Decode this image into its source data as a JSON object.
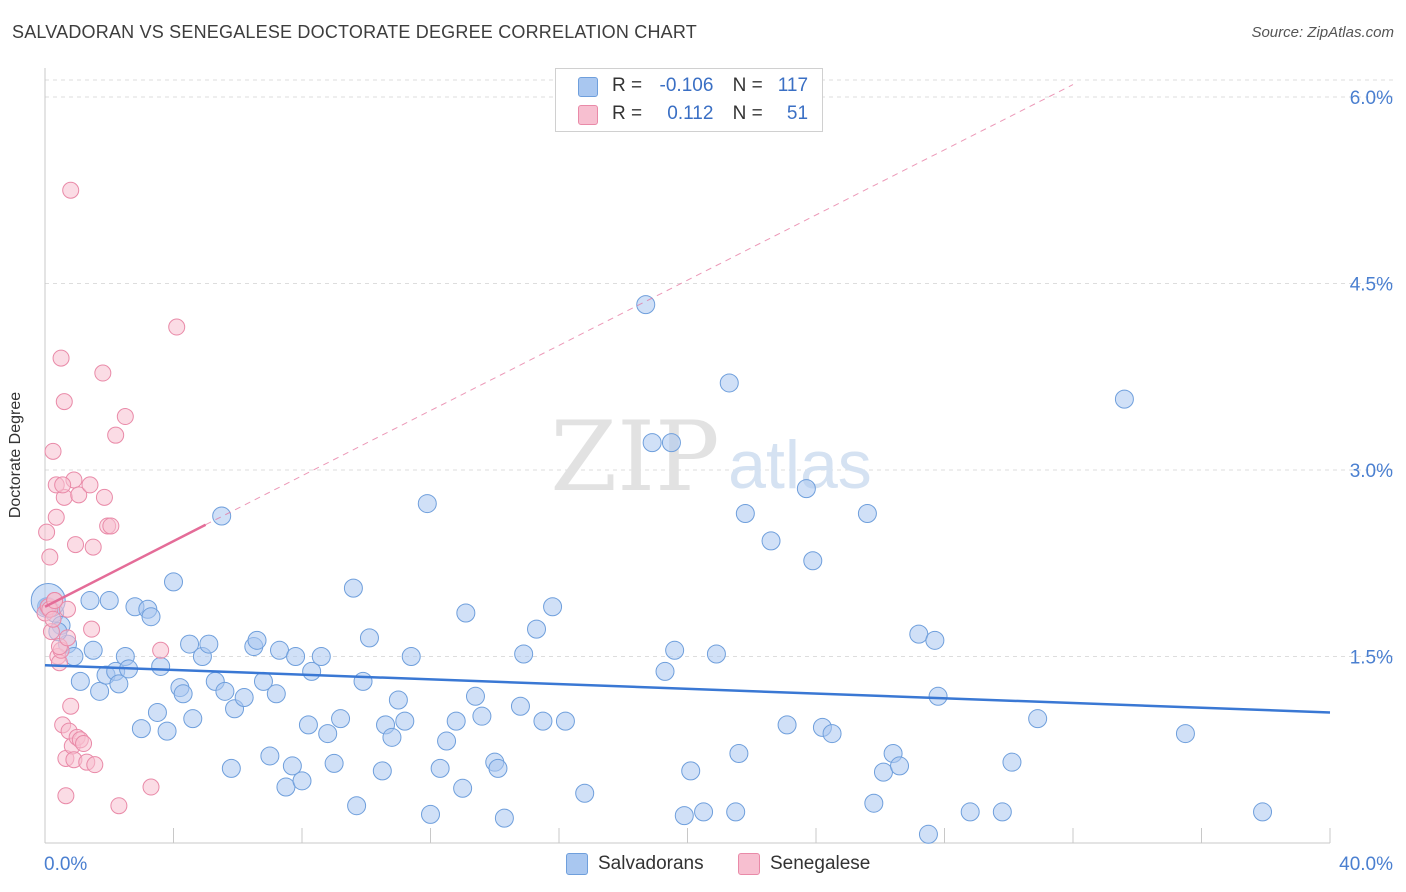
{
  "title": "SALVADORAN VS SENEGALESE DOCTORATE DEGREE CORRELATION CHART",
  "source": "Source: ZipAtlas.com",
  "watermark": {
    "zip": "ZIP",
    "atlas": "atlas"
  },
  "legend": {
    "rows": [
      {
        "r_label": "R =",
        "r_value": "-0.106",
        "n_label": "N =",
        "n_value": "117",
        "color": "#a9c7f0",
        "border": "#6f9fdc"
      },
      {
        "r_label": "R =",
        "r_value": "0.112",
        "n_label": "N =",
        "n_value": "51",
        "color": "#f7bfd0",
        "border": "#e98aa8"
      }
    ]
  },
  "bottom_legend": {
    "series1": "Salvadorans",
    "series2": "Senegalese"
  },
  "colors": {
    "blue": "#3a78d4",
    "pink": "#e46c98",
    "axis_text": "#4a7fd0",
    "grid": "#dddddd"
  },
  "chart_data": {
    "type": "scatter",
    "title": "SALVADORAN VS SENEGALESE DOCTORATE DEGREE CORRELATION CHART",
    "xlabel": "",
    "ylabel": "Doctorate Degree",
    "xlim": [
      0,
      40
    ],
    "ylim": [
      0,
      6.2
    ],
    "x_tick_labels": [
      "0.0%",
      "40.0%"
    ],
    "y_ticks": [
      1.5,
      3.0,
      4.5,
      6.0
    ],
    "y_tick_labels": [
      "1.5%",
      "3.0%",
      "4.5%",
      "6.0%"
    ],
    "series": [
      {
        "name": "Salvadorans",
        "color": "#a9c7f0",
        "stroke": "#6f9fdc",
        "points": [
          [
            0.1,
            1.9
          ],
          [
            0.3,
            1.85
          ],
          [
            0.5,
            1.75
          ],
          [
            0.7,
            1.6
          ],
          [
            0.9,
            1.5
          ],
          [
            1.1,
            1.3
          ],
          [
            1.4,
            1.95
          ],
          [
            1.5,
            1.55
          ],
          [
            1.7,
            1.22
          ],
          [
            1.9,
            1.35
          ],
          [
            2.0,
            1.95
          ],
          [
            2.2,
            1.38
          ],
          [
            2.3,
            1.28
          ],
          [
            2.5,
            1.5
          ],
          [
            2.6,
            1.4
          ],
          [
            2.8,
            1.9
          ],
          [
            3.0,
            0.92
          ],
          [
            3.2,
            1.88
          ],
          [
            3.3,
            1.82
          ],
          [
            3.5,
            1.05
          ],
          [
            3.6,
            1.42
          ],
          [
            3.8,
            0.9
          ],
          [
            4.0,
            2.1
          ],
          [
            4.2,
            1.25
          ],
          [
            4.3,
            1.2
          ],
          [
            4.5,
            1.6
          ],
          [
            4.6,
            1.0
          ],
          [
            4.9,
            1.5
          ],
          [
            5.1,
            1.6
          ],
          [
            5.3,
            1.3
          ],
          [
            5.5,
            2.63
          ],
          [
            5.6,
            1.22
          ],
          [
            5.8,
            0.6
          ],
          [
            5.9,
            1.08
          ],
          [
            6.2,
            1.17
          ],
          [
            6.5,
            1.58
          ],
          [
            6.6,
            1.63
          ],
          [
            6.8,
            1.3
          ],
          [
            7.0,
            0.7
          ],
          [
            7.2,
            1.2
          ],
          [
            7.3,
            1.55
          ],
          [
            7.5,
            0.45
          ],
          [
            7.7,
            0.62
          ],
          [
            7.8,
            1.5
          ],
          [
            8.0,
            0.5
          ],
          [
            8.2,
            0.95
          ],
          [
            8.3,
            1.38
          ],
          [
            8.6,
            1.5
          ],
          [
            8.8,
            0.88
          ],
          [
            9.0,
            0.64
          ],
          [
            9.2,
            1.0
          ],
          [
            9.6,
            2.05
          ],
          [
            9.7,
            0.3
          ],
          [
            9.9,
            1.3
          ],
          [
            10.1,
            1.65
          ],
          [
            10.5,
            0.58
          ],
          [
            10.6,
            0.95
          ],
          [
            10.8,
            0.85
          ],
          [
            11.0,
            1.15
          ],
          [
            11.2,
            0.98
          ],
          [
            11.4,
            1.5
          ],
          [
            11.9,
            2.73
          ],
          [
            12.0,
            0.23
          ],
          [
            12.3,
            0.6
          ],
          [
            12.5,
            0.82
          ],
          [
            12.8,
            0.98
          ],
          [
            13.0,
            0.44
          ],
          [
            13.1,
            1.85
          ],
          [
            13.4,
            1.18
          ],
          [
            13.6,
            1.02
          ],
          [
            14.0,
            0.65
          ],
          [
            14.1,
            0.6
          ],
          [
            14.3,
            0.2
          ],
          [
            14.8,
            1.1
          ],
          [
            14.9,
            1.52
          ],
          [
            15.3,
            1.72
          ],
          [
            15.5,
            0.98
          ],
          [
            15.8,
            1.9
          ],
          [
            16.2,
            0.98
          ],
          [
            16.8,
            0.4
          ],
          [
            18.7,
            4.33
          ],
          [
            18.9,
            3.22
          ],
          [
            19.3,
            1.38
          ],
          [
            19.5,
            3.22
          ],
          [
            19.6,
            1.55
          ],
          [
            19.9,
            0.22
          ],
          [
            20.1,
            0.58
          ],
          [
            20.5,
            0.25
          ],
          [
            20.9,
            1.52
          ],
          [
            21.3,
            3.7
          ],
          [
            21.5,
            0.25
          ],
          [
            21.6,
            0.72
          ],
          [
            21.8,
            2.65
          ],
          [
            22.6,
            2.43
          ],
          [
            23.1,
            0.95
          ],
          [
            23.7,
            2.85
          ],
          [
            23.9,
            2.27
          ],
          [
            24.2,
            0.93
          ],
          [
            24.5,
            0.88
          ],
          [
            25.6,
            2.65
          ],
          [
            25.8,
            0.32
          ],
          [
            26.1,
            0.57
          ],
          [
            26.4,
            0.72
          ],
          [
            26.6,
            0.62
          ],
          [
            27.2,
            1.68
          ],
          [
            27.5,
            0.07
          ],
          [
            27.7,
            1.63
          ],
          [
            27.8,
            1.18
          ],
          [
            28.8,
            0.25
          ],
          [
            29.8,
            0.25
          ],
          [
            30.1,
            0.65
          ],
          [
            30.9,
            1.0
          ],
          [
            33.6,
            3.57
          ],
          [
            35.5,
            0.88
          ],
          [
            37.9,
            0.25
          ],
          [
            0.05,
            1.9
          ],
          [
            0.4,
            1.7
          ]
        ],
        "trend": {
          "x": [
            0,
            40
          ],
          "y": [
            1.43,
            1.05
          ]
        }
      },
      {
        "name": "Senegalese",
        "color": "#f7bfd0",
        "stroke": "#e98aa8",
        "points": [
          [
            0.0,
            1.85
          ],
          [
            0.05,
            2.5
          ],
          [
            0.1,
            1.9
          ],
          [
            0.15,
            2.3
          ],
          [
            0.2,
            1.7
          ],
          [
            0.25,
            3.15
          ],
          [
            0.3,
            1.95
          ],
          [
            0.35,
            2.62
          ],
          [
            0.4,
            1.5
          ],
          [
            0.45,
            1.45
          ],
          [
            0.5,
            3.9
          ],
          [
            0.5,
            1.55
          ],
          [
            0.55,
            0.95
          ],
          [
            0.6,
            3.55
          ],
          [
            0.6,
            2.78
          ],
          [
            0.65,
            0.68
          ],
          [
            0.65,
            0.38
          ],
          [
            0.7,
            1.88
          ],
          [
            0.75,
            0.9
          ],
          [
            0.8,
            5.25
          ],
          [
            0.8,
            1.1
          ],
          [
            0.85,
            0.78
          ],
          [
            0.9,
            2.92
          ],
          [
            0.9,
            0.67
          ],
          [
            0.95,
            2.4
          ],
          [
            1.0,
            0.85
          ],
          [
            1.05,
            2.8
          ],
          [
            1.1,
            0.83
          ],
          [
            1.2,
            0.8
          ],
          [
            1.3,
            0.65
          ],
          [
            1.45,
            1.72
          ],
          [
            1.5,
            2.38
          ],
          [
            1.55,
            0.63
          ],
          [
            1.8,
            3.78
          ],
          [
            1.85,
            2.78
          ],
          [
            1.95,
            2.55
          ],
          [
            2.05,
            2.55
          ],
          [
            2.3,
            0.3
          ],
          [
            2.5,
            3.43
          ],
          [
            3.3,
            0.45
          ],
          [
            3.6,
            1.55
          ],
          [
            4.1,
            4.15
          ],
          [
            1.4,
            2.88
          ],
          [
            2.2,
            3.28
          ],
          [
            0.35,
            2.88
          ],
          [
            0.15,
            1.88
          ],
          [
            0.55,
            2.88
          ],
          [
            0.25,
            1.8
          ],
          [
            0.45,
            1.58
          ],
          [
            0.7,
            1.65
          ],
          [
            0.3,
            1.95
          ]
        ],
        "trend_solid": {
          "x": [
            0,
            5.0
          ],
          "y": [
            1.9,
            2.56
          ]
        },
        "trend_dashed": {
          "x": [
            5.0,
            32.0
          ],
          "y": [
            2.56,
            6.1
          ]
        }
      }
    ]
  }
}
